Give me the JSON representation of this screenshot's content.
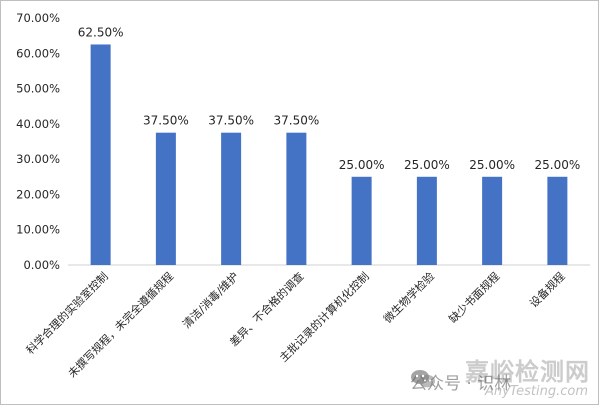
{
  "chart_data": {
    "type": "bar",
    "categories": [
      "科学合理的实验室控制",
      "未撰写规程，未完全遵循规程",
      "清洁/消毒/维护",
      "差异、不合格的调查",
      "主批记录的计算机化控制",
      "微生物学检验",
      "缺少书面规程",
      "设备规程"
    ],
    "values": [
      62.5,
      37.5,
      37.5,
      37.5,
      25.0,
      25.0,
      25.0,
      25.0
    ],
    "data_labels": [
      "62.50%",
      "37.50%",
      "37.50%",
      "37.50%",
      "25.00%",
      "25.00%",
      "25.00%",
      "25.00%"
    ],
    "ylim": [
      0,
      70
    ],
    "yticks": [
      "0.00%",
      "10.00%",
      "20.00%",
      "30.00%",
      "40.00%",
      "50.00%",
      "60.00%",
      "70.00%"
    ],
    "grid": false,
    "bar_color": "#4472c4",
    "title": "",
    "xlabel": "",
    "ylabel": ""
  },
  "watermark": {
    "site": "嘉峪检测网",
    "wechat_text": "公众号 · 识林",
    "url": "AnyTesting.com",
    "wechat_icon": "wechat-icon"
  }
}
